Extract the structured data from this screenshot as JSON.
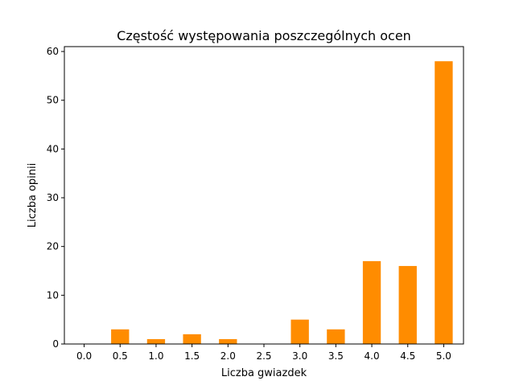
{
  "chart_data": {
    "type": "bar",
    "title": "Częstość występowania poszczególnych ocen",
    "xlabel": "Liczba gwiazdek",
    "ylabel": "Liczba opinii",
    "categories": [
      "0.0",
      "0.5",
      "1.0",
      "1.5",
      "2.0",
      "2.5",
      "3.0",
      "3.5",
      "4.0",
      "4.5",
      "5.0"
    ],
    "values": [
      0,
      3,
      1,
      2,
      1,
      0,
      5,
      3,
      17,
      16,
      58
    ],
    "y_ticks": [
      "0",
      "10",
      "20",
      "30",
      "40",
      "50",
      "60"
    ],
    "ylim": [
      0,
      61
    ],
    "grid": false,
    "legend": "none",
    "bar_color": "#ff8c00"
  }
}
